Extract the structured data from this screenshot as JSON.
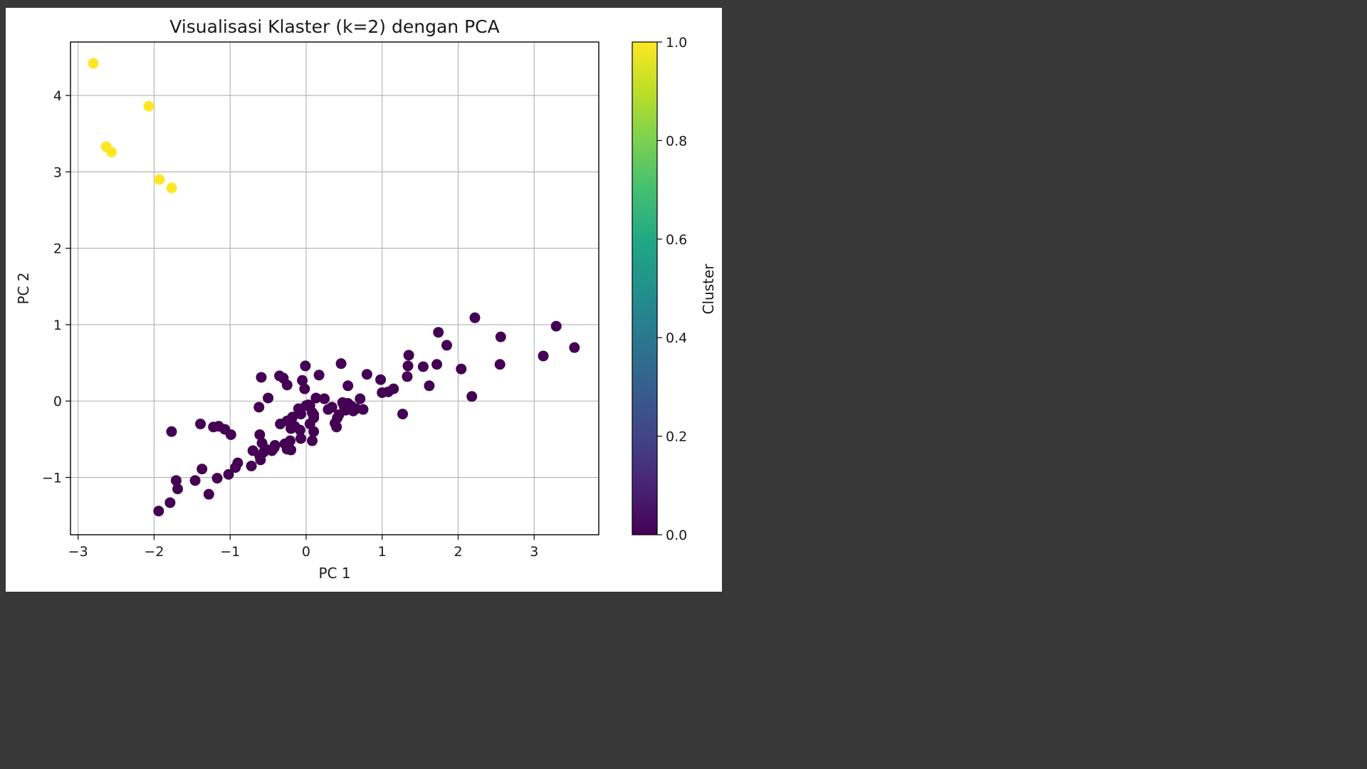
{
  "chart_data": {
    "type": "scatter",
    "title": "Visualisasi Klaster (k=2) dengan PCA",
    "xlabel": "PC 1",
    "ylabel": "PC 2",
    "xlim": [
      -3.1,
      3.85
    ],
    "ylim": [
      -1.75,
      4.7
    ],
    "xticks": [
      -3,
      -2,
      -1,
      0,
      1,
      2,
      3
    ],
    "yticks": [
      -1,
      0,
      1,
      2,
      3,
      4
    ],
    "xtick_labels": [
      "−3",
      "−2",
      "−1",
      "0",
      "1",
      "2",
      "3"
    ],
    "ytick_labels": [
      "−1",
      "0",
      "1",
      "2",
      "3",
      "4"
    ],
    "grid": true,
    "colormap": "viridis",
    "colors": {
      "cluster_0": "#440154",
      "cluster_1": "#fde725"
    },
    "colorbar": {
      "label": "Cluster",
      "range": [
        0.0,
        1.0
      ],
      "ticks": [
        0.0,
        0.2,
        0.4,
        0.6,
        0.8,
        1.0
      ],
      "tick_labels": [
        "0.0",
        "0.2",
        "0.4",
        "0.6",
        "0.8",
        "1.0"
      ]
    },
    "series": [
      {
        "cluster": 1,
        "x": [
          -2.8,
          -2.63,
          -2.56,
          -2.07,
          -1.93,
          -1.77
        ],
        "y": [
          4.42,
          3.33,
          3.26,
          3.86,
          2.9,
          2.79
        ]
      },
      {
        "cluster": 0,
        "x": [
          2.22,
          1.74,
          1.85,
          2.56,
          3.29,
          3.53,
          3.12,
          2.55,
          2.04,
          1.72,
          1.54,
          1.35,
          1.34,
          1.33,
          1.62,
          2.18,
          1.27,
          1.15,
          1.08,
          0.98,
          1.0,
          0.8,
          0.71,
          0.75,
          0.62,
          0.55,
          0.46,
          0.48,
          0.6,
          0.52,
          0.43,
          0.38,
          0.4,
          0.17,
          0.24,
          0.29,
          0.1,
          0.05,
          0.1,
          0.08,
          -0.07,
          -0.08,
          -0.07,
          -0.15,
          -0.2,
          -0.21,
          -0.25,
          -0.28,
          -0.42,
          -0.56,
          -0.61,
          -0.61,
          -0.62,
          -0.59,
          -0.35,
          -0.3,
          -0.25,
          -0.05,
          -0.02,
          -0.01,
          0.03,
          0.05,
          0.08,
          0.1,
          -0.1,
          -0.18,
          -0.25,
          -0.34,
          -0.41,
          -0.45,
          -0.53,
          -0.58,
          -0.7,
          -0.72,
          -0.6,
          -0.9,
          -0.93,
          -1.02,
          -1.07,
          -0.99,
          -1.15,
          -1.22,
          -1.39,
          -1.37,
          -1.46,
          -1.71,
          -1.69,
          -1.77,
          -1.94,
          -1.79,
          -1.28,
          -1.17,
          -0.2,
          0.0,
          0.13,
          -0.5,
          0.34,
          0.55,
          0.41,
          0.66,
          0.5
        ],
        "y": [
          1.09,
          0.9,
          0.73,
          0.84,
          0.98,
          0.7,
          0.59,
          0.48,
          0.42,
          0.48,
          0.45,
          0.6,
          0.46,
          0.32,
          0.2,
          0.06,
          -0.17,
          0.16,
          0.12,
          0.28,
          0.11,
          0.35,
          0.03,
          -0.11,
          -0.13,
          0.2,
          0.49,
          -0.02,
          -0.07,
          -0.12,
          -0.18,
          -0.29,
          -0.34,
          0.34,
          0.03,
          -0.11,
          -0.18,
          -0.3,
          -0.4,
          -0.52,
          -0.49,
          -0.38,
          -0.17,
          -0.33,
          -0.36,
          -0.52,
          -0.63,
          -0.56,
          -0.61,
          -0.67,
          -0.72,
          -0.44,
          -0.08,
          0.31,
          0.33,
          0.3,
          0.21,
          0.27,
          0.16,
          0.46,
          -0.05,
          -0.06,
          -0.15,
          -0.22,
          -0.1,
          -0.21,
          -0.26,
          -0.3,
          -0.58,
          -0.65,
          -0.63,
          -0.55,
          -0.65,
          -0.85,
          -0.77,
          -0.81,
          -0.87,
          -0.96,
          -0.37,
          -0.44,
          -0.33,
          -0.34,
          -0.3,
          -0.89,
          -1.04,
          -1.04,
          -1.15,
          -0.4,
          -1.44,
          -1.33,
          -1.22,
          -1.01,
          -0.64,
          -0.06,
          0.04,
          0.04,
          -0.08,
          -0.03,
          -0.22,
          -0.1,
          -0.07
        ]
      }
    ]
  }
}
